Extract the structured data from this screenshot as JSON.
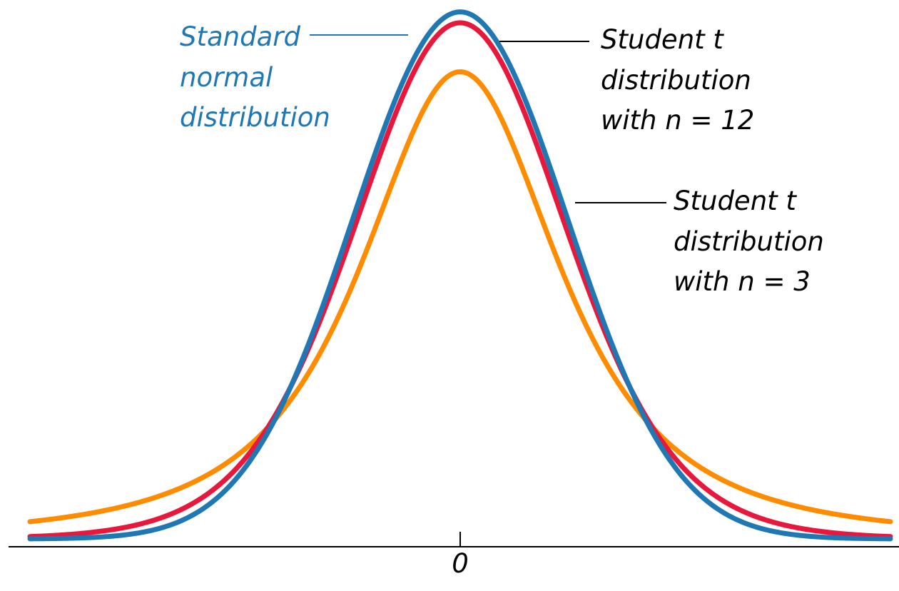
{
  "chart_data": {
    "type": "line",
    "title": "",
    "xlabel": "",
    "ylabel": "",
    "xlim": [
      -4,
      4
    ],
    "x_ticks": [
      0
    ],
    "x_tick_labels": [
      "0"
    ],
    "grid": false,
    "legend": "none",
    "series": [
      {
        "name_lines": [
          "Standard",
          "normal",
          "distribution"
        ],
        "distribution": "standard normal",
        "color": "#1f77b4",
        "x": [
          -4,
          -3,
          -2.5,
          -2,
          -1.5,
          -1,
          -0.5,
          0,
          0.5,
          1,
          1.5,
          2,
          2.5,
          3,
          4
        ],
        "y": [
          0.0001,
          0.0044,
          0.0175,
          0.054,
          0.1295,
          0.242,
          0.3521,
          0.3989,
          0.3521,
          0.242,
          0.1295,
          0.054,
          0.0175,
          0.0044,
          0.0001
        ]
      },
      {
        "name_lines": [
          "Student t",
          "distribution",
          "with n = 12"
        ],
        "distribution": "Student t, n = 12",
        "color": "#e8183c",
        "x": [
          -4,
          -3,
          -2.5,
          -2,
          -1.5,
          -1,
          -0.5,
          0,
          0.5,
          1,
          1.5,
          2,
          2.5,
          3,
          4
        ],
        "y": [
          0.0013,
          0.0078,
          0.0246,
          0.0623,
          0.1317,
          0.2358,
          0.3453,
          0.3907,
          0.3453,
          0.2358,
          0.1317,
          0.0623,
          0.0246,
          0.0078,
          0.0013
        ]
      },
      {
        "name_lines": [
          "Student t",
          "distribution",
          "with n = 3"
        ],
        "distribution": "Student t, n = 3",
        "color": "#ff8c00",
        "x": [
          -4,
          -3,
          -2.5,
          -2,
          -1.5,
          -1,
          -0.5,
          0,
          0.5,
          1,
          1.5,
          2,
          2.5,
          3,
          4
        ],
        "y": [
          0.0066,
          0.0232,
          0.0422,
          0.0732,
          0.1273,
          0.2067,
          0.2998,
          0.3536,
          0.2998,
          0.2067,
          0.1273,
          0.0732,
          0.0422,
          0.0232,
          0.0066
        ]
      }
    ]
  }
}
